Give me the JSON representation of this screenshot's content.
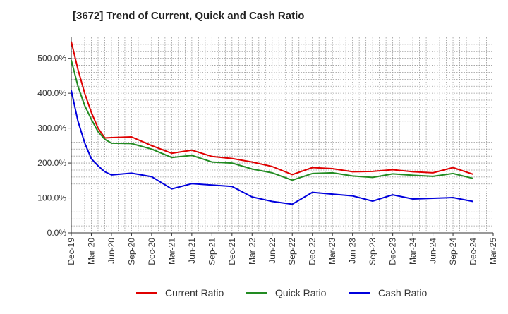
{
  "chart_data": {
    "type": "line",
    "title": "[3672]  Trend of Current, Quick and Cash Ratio",
    "xlabel": "",
    "ylabel": "",
    "ylim": [
      0,
      560
    ],
    "yticks": [
      0,
      100,
      200,
      300,
      400,
      500
    ],
    "ytick_labels": [
      "0.0%",
      "100.0%",
      "200.0%",
      "300.0%",
      "400.0%",
      "500.0%"
    ],
    "x_tick_labels": [
      "Dec-19",
      "Mar-20",
      "Jun-20",
      "Sep-20",
      "Dec-20",
      "Mar-21",
      "Jun-21",
      "Sep-21",
      "Dec-21",
      "Mar-22",
      "Jun-22",
      "Sep-22",
      "Dec-22",
      "Mar-23",
      "Jun-23",
      "Sep-23",
      "Dec-23",
      "Mar-24",
      "Jun-24",
      "Sep-24",
      "Dec-24",
      "Mar-25"
    ],
    "x": [
      "Dec-19",
      "Jan-20",
      "Feb-20",
      "Mar-20",
      "Apr-20",
      "May-20",
      "Jun-20",
      "Sep-20",
      "Dec-20",
      "Mar-21",
      "Jun-21",
      "Sep-21",
      "Dec-21",
      "Mar-22",
      "Jun-22",
      "Sep-22",
      "Dec-22",
      "Mar-23",
      "Jun-23",
      "Sep-23",
      "Dec-23",
      "Mar-24",
      "Jun-24",
      "Sep-24",
      "Dec-24"
    ],
    "x_months": [
      0,
      1,
      2,
      3,
      4,
      5,
      6,
      9,
      12,
      15,
      18,
      21,
      24,
      27,
      30,
      33,
      36,
      39,
      42,
      45,
      48,
      51,
      54,
      57,
      60
    ],
    "x_months_total": 63,
    "series": [
      {
        "name": "Current Ratio",
        "color": "#e00000",
        "values": [
          548,
          468,
          400,
          345,
          300,
          272,
          273,
          275,
          250,
          228,
          237,
          219,
          213,
          203,
          190,
          167,
          187,
          184,
          175,
          176,
          181,
          175,
          172,
          187,
          168
        ]
      },
      {
        "name": "Quick Ratio",
        "color": "#228b22",
        "values": [
          495,
          420,
          365,
          325,
          290,
          268,
          257,
          256,
          240,
          216,
          222,
          203,
          200,
          183,
          172,
          151,
          170,
          172,
          163,
          159,
          169,
          165,
          162,
          170,
          156
        ]
      },
      {
        "name": "Cash Ratio",
        "color": "#0000dd",
        "values": [
          408,
          320,
          258,
          212,
          192,
          175,
          166,
          171,
          161,
          126,
          141,
          137,
          133,
          103,
          90,
          82,
          116,
          111,
          106,
          91,
          109,
          97,
          99,
          101,
          90
        ]
      }
    ],
    "legend_position": "bottom-center",
    "grid": true
  }
}
